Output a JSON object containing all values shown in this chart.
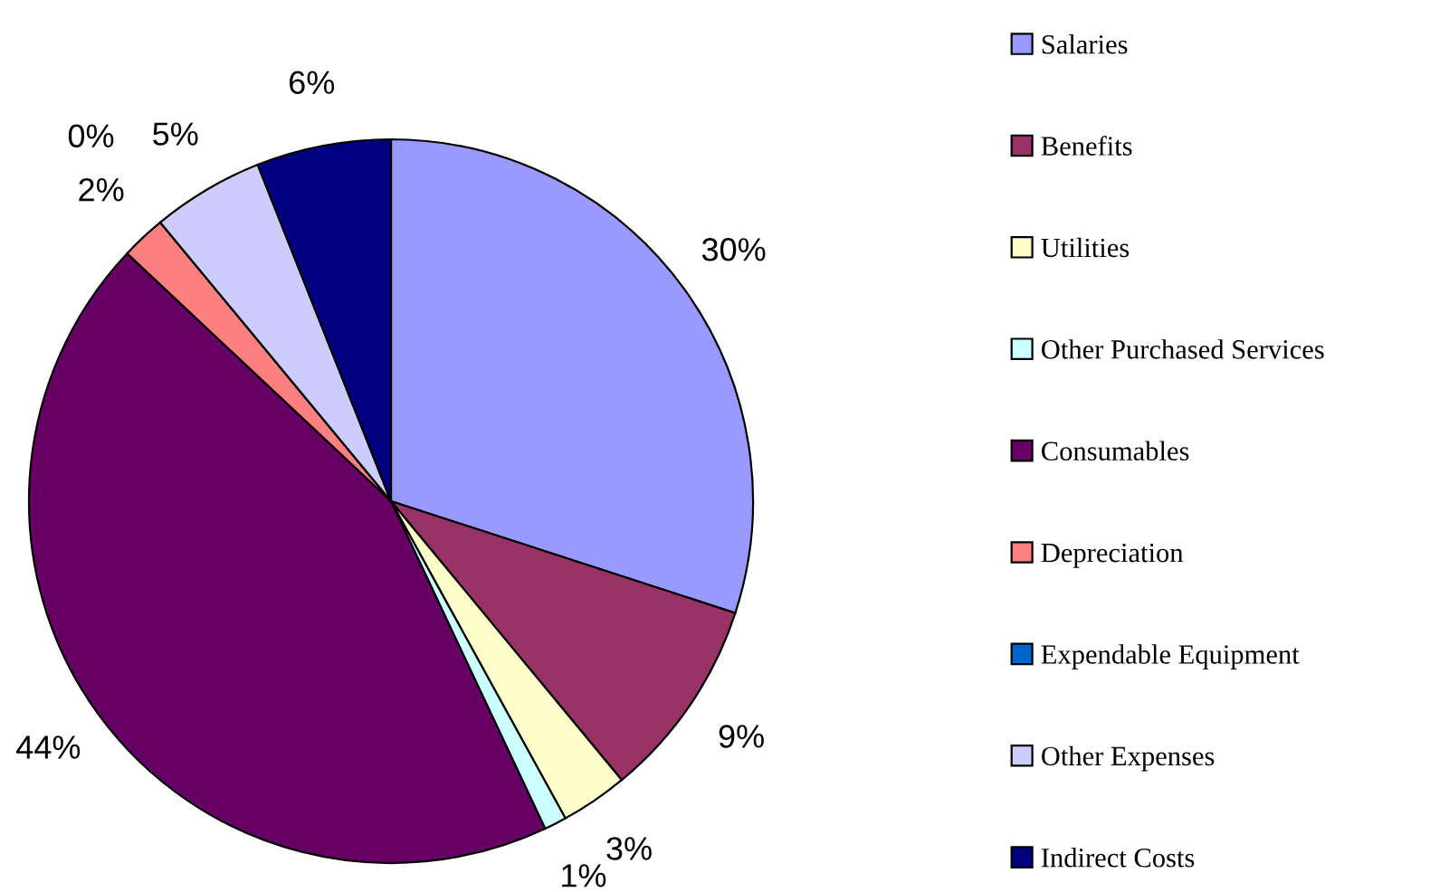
{
  "chart_data": {
    "type": "pie",
    "categories": [
      "Salaries",
      "Benefits",
      "Utilities",
      "Other Purchased Services",
      "Consumables",
      "Depreciation",
      "Expendable Equipment",
      "Other Expenses",
      "Indirect Costs"
    ],
    "values": [
      30,
      9,
      3,
      1,
      44,
      2,
      0,
      5,
      6
    ],
    "value_labels": [
      "30%",
      "9%",
      "3%",
      "1%",
      "44%",
      "2%",
      "0%",
      "5%",
      "6%"
    ],
    "colors": [
      "#9999ff",
      "#993366",
      "#ffffcc",
      "#ccffff",
      "#660066",
      "#ff8080",
      "#0066cc",
      "#ccccff",
      "#000080"
    ],
    "legend": "right"
  }
}
